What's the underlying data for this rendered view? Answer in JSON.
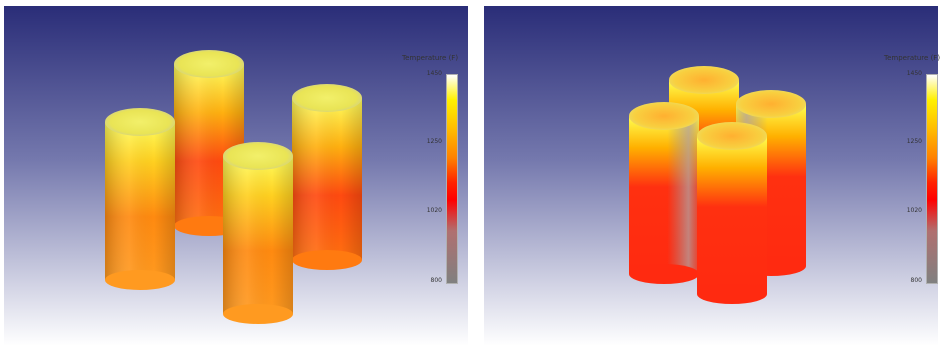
{
  "panels": [
    {
      "legend_title": "Temperature (F)",
      "ticks": [
        "1450",
        "1250",
        "1020",
        "800"
      ]
    },
    {
      "legend_title": "Temperature (F)",
      "ticks": [
        "1450",
        "1250",
        "1020",
        "800"
      ]
    }
  ],
  "colors": {
    "background_top": "#2a2f7a",
    "background_bottom": "#ffffff",
    "hot": "#fff7a0",
    "warm": "#ff9a18",
    "cool": "#ff2a10",
    "cold": "#909090"
  }
}
